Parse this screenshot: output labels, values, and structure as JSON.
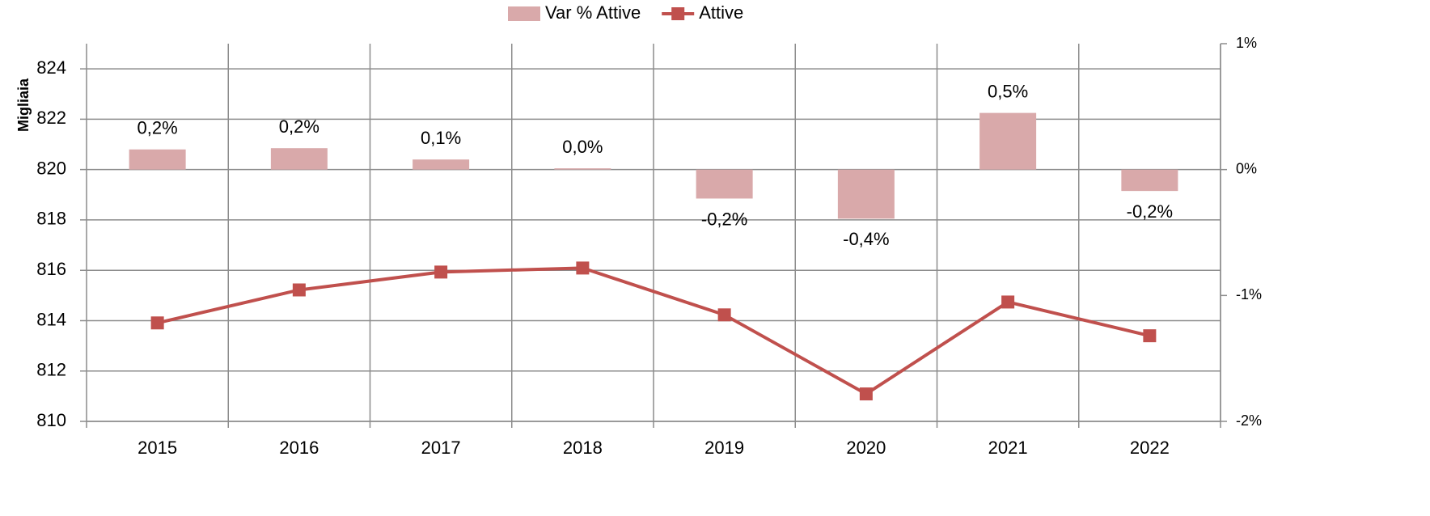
{
  "chart_data": {
    "type": "combo",
    "y_label": "Migliaia",
    "categories": [
      "2015",
      "2016",
      "2017",
      "2018",
      "2019",
      "2020",
      "2021",
      "2022"
    ],
    "series": [
      {
        "name": "Var % Attive",
        "type": "bar",
        "axis": "y2",
        "color": "#d9a9aa",
        "values": [
          0.16,
          0.17,
          0.08,
          0.01,
          -0.23,
          -0.39,
          0.45,
          -0.17
        ],
        "value_labels": [
          "0,2%",
          "0,2%",
          "0,1%",
          "0,0%",
          "-0,2%",
          "-0,4%",
          "0,5%",
          "-0,2%"
        ]
      },
      {
        "name": "Attive",
        "type": "line",
        "color": "#c0504d",
        "values": [
          813.91,
          815.22,
          815.93,
          816.09,
          814.23,
          811.09,
          814.74,
          813.4
        ]
      }
    ],
    "ylim": [
      810,
      825
    ],
    "yticks": [
      810,
      812,
      814,
      816,
      818,
      820,
      822,
      824
    ],
    "y2lim": [
      -2,
      1
    ],
    "y2ticks": [
      {
        "value": -2,
        "label": "-2%"
      },
      {
        "value": -1,
        "label": "-1%"
      },
      {
        "value": 0,
        "label": "0%"
      },
      {
        "value": 1,
        "label": "1%"
      }
    ],
    "grid": true,
    "legend": "top"
  }
}
